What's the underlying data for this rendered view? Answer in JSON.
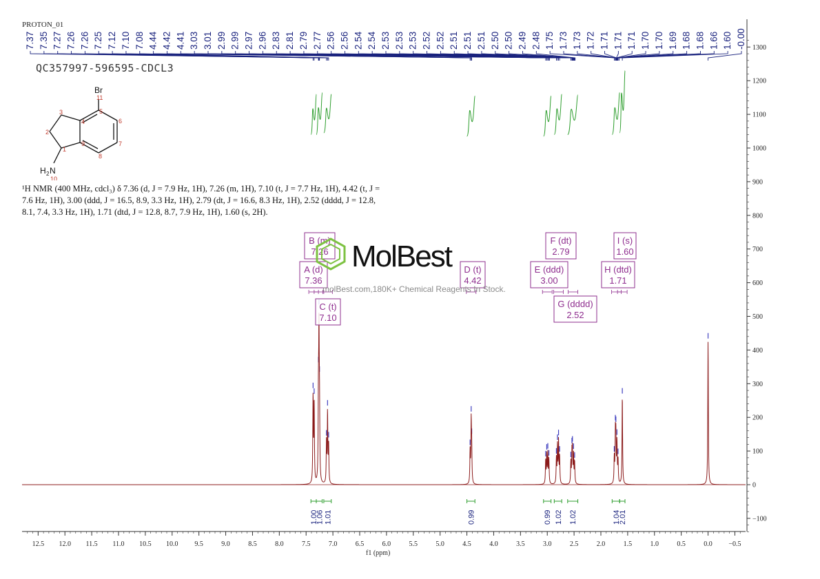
{
  "header": {
    "experiment": "PROTON_01",
    "sample_id": "QC357997-596595-CDCL3"
  },
  "structure": {
    "atoms": {
      "br": "Br",
      "nh2_h": "H",
      "nh2_sub": "2",
      "nh2_n": "N"
    },
    "numbers": [
      "1",
      "2",
      "3",
      "4",
      "5",
      "6",
      "7",
      "8",
      "9",
      "10",
      "11"
    ]
  },
  "nmr_summary": {
    "lines": [
      "¹H NMR (400 MHz, cdcl₃) δ 7.36 (d, J = 7.9 Hz, 1H), 7.26 (m, 1H), 7.10 (t, J = 7.7 Hz, 1H), 4.42 (t, J =",
      "7.6 Hz, 1H), 3.00 (ddd, J = 16.5, 8.9, 3.3 Hz, 1H), 2.79 (dt, J = 16.6, 8.3 Hz, 1H), 2.52 (dddd, J = 12.8,",
      "8.1, 7.4, 3.3 Hz, 1H), 1.71 (dtd, J = 12.8, 8.7, 7.9 Hz, 1H), 1.60 (s, 2H)."
    ]
  },
  "watermark": {
    "brand": "MolBest",
    "url": "molBest.com,180K+ Chemical Reagents In Stock."
  },
  "colors": {
    "spectrum": "#8b1a1a",
    "peak_label_line": "#1a237e",
    "integral": "#2e9e2e",
    "multiplet_box": "#8e2c8e",
    "peak_tick": "#3f3fbf",
    "logo_green": "#7dc242",
    "axis": "#333333"
  },
  "chart_data": {
    "type": "line",
    "title": "",
    "xlabel": "f1 (ppm)",
    "ylabel": "",
    "x_reversed": true,
    "xlim": [
      12.8,
      -0.7
    ],
    "ylim": [
      -150,
      1340
    ],
    "x_ticks": [
      12.5,
      12.0,
      11.5,
      11.0,
      10.5,
      10.0,
      9.5,
      9.0,
      8.5,
      8.0,
      7.5,
      7.0,
      6.5,
      6.0,
      5.5,
      5.0,
      4.5,
      4.0,
      3.5,
      3.0,
      2.5,
      2.0,
      1.5,
      1.0,
      0.5,
      0.0,
      -0.5
    ],
    "x_tick_labels": [
      "12.5",
      "12.0",
      "11.5",
      "11.0",
      "10.5",
      "10.0",
      "9.5",
      "9.0",
      "8.5",
      "8.0",
      "7.5",
      "7.0",
      "6.5",
      "6.0",
      "5.5",
      "5.0",
      "4.5",
      "4.0",
      "3.5",
      "3.0",
      "2.5",
      "2.0",
      "1.5",
      "1.0",
      "0.5",
      "0.0",
      "−0.5"
    ],
    "y_ticks": [
      -100,
      0,
      100,
      200,
      300,
      400,
      500,
      600,
      700,
      800,
      900,
      1000,
      1100,
      1200,
      1300
    ],
    "y_tick_labels": [
      "−100",
      "0",
      "100",
      "200",
      "300",
      "400",
      "500",
      "600",
      "700",
      "800",
      "900",
      "1000",
      "1100",
      "1200",
      "1300"
    ],
    "peaks": [
      {
        "ppm": 7.37,
        "height": 260
      },
      {
        "ppm": 7.35,
        "height": 240
      },
      {
        "ppm": 7.27,
        "height": 230
      },
      {
        "ppm": 7.26,
        "height": 415
      },
      {
        "ppm": 7.25,
        "height": 200
      },
      {
        "ppm": 7.12,
        "height": 120
      },
      {
        "ppm": 7.1,
        "height": 210
      },
      {
        "ppm": 7.08,
        "height": 115
      },
      {
        "ppm": 4.44,
        "height": 95
      },
      {
        "ppm": 4.42,
        "height": 180
      },
      {
        "ppm": 4.41,
        "height": 95
      },
      {
        "ppm": 3.03,
        "height": 70
      },
      {
        "ppm": 3.01,
        "height": 85
      },
      {
        "ppm": 2.99,
        "height": 88
      },
      {
        "ppm": 2.97,
        "height": 72
      },
      {
        "ppm": 2.83,
        "height": 75
      },
      {
        "ppm": 2.81,
        "height": 110
      },
      {
        "ppm": 2.79,
        "height": 125
      },
      {
        "ppm": 2.77,
        "height": 80
      },
      {
        "ppm": 2.56,
        "height": 65
      },
      {
        "ppm": 2.54,
        "height": 85
      },
      {
        "ppm": 2.53,
        "height": 90
      },
      {
        "ppm": 2.51,
        "height": 85
      },
      {
        "ppm": 2.49,
        "height": 65
      },
      {
        "ppm": 1.75,
        "height": 75
      },
      {
        "ppm": 1.73,
        "height": 140
      },
      {
        "ppm": 1.72,
        "height": 130
      },
      {
        "ppm": 1.7,
        "height": 120
      },
      {
        "ppm": 1.68,
        "height": 70
      },
      {
        "ppm": 1.6,
        "height": 265
      },
      {
        "ppm": 0.0,
        "height": 430
      }
    ],
    "peak_labels": [
      "7.37",
      "7.35",
      "7.27",
      "7.26",
      "7.26",
      "7.25",
      "7.12",
      "7.10",
      "7.08",
      "4.44",
      "4.42",
      "4.41",
      "3.03",
      "3.01",
      "2.99",
      "2.99",
      "2.97",
      "2.96",
      "2.83",
      "2.81",
      "2.79",
      "2.77",
      "2.56",
      "2.56",
      "2.54",
      "2.54",
      "2.53",
      "2.53",
      "2.53",
      "2.52",
      "2.52",
      "2.51",
      "2.51",
      "2.51",
      "2.50",
      "2.50",
      "2.49",
      "2.48",
      "1.75",
      "1.73",
      "1.73",
      "1.72",
      "1.71",
      "1.71",
      "1.71",
      "1.70",
      "1.70",
      "1.69",
      "1.68",
      "1.68",
      "1.66",
      "1.60",
      "-0.00"
    ],
    "peak_label_targets": [
      7.37,
      7.35,
      7.27,
      7.26,
      7.26,
      7.25,
      7.12,
      7.1,
      7.08,
      4.44,
      4.42,
      4.41,
      3.03,
      3.01,
      2.99,
      2.99,
      2.97,
      2.96,
      2.83,
      2.81,
      2.79,
      2.77,
      2.56,
      2.56,
      2.54,
      2.54,
      2.53,
      2.53,
      2.53,
      2.52,
      2.52,
      2.51,
      2.51,
      2.51,
      2.5,
      2.5,
      2.49,
      2.48,
      1.75,
      1.73,
      1.73,
      1.72,
      1.71,
      1.71,
      1.71,
      1.7,
      1.7,
      1.69,
      1.68,
      1.68,
      1.66,
      1.6,
      0.0
    ],
    "integrals": [
      {
        "from": 7.41,
        "to": 7.31,
        "value": "1.00",
        "curve_low": 1040,
        "curve_high": 1160
      },
      {
        "from": 7.31,
        "to": 7.2,
        "value": "1.06",
        "curve_low": 1040,
        "curve_high": 1165
      },
      {
        "from": 7.17,
        "to": 7.03,
        "value": "1.01",
        "curve_low": 1045,
        "curve_high": 1160
      },
      {
        "from": 4.5,
        "to": 4.35,
        "value": "0.99",
        "curve_low": 1035,
        "curve_high": 1155
      },
      {
        "from": 3.07,
        "to": 2.93,
        "value": "0.99",
        "curve_low": 1035,
        "curve_high": 1155
      },
      {
        "from": 2.87,
        "to": 2.73,
        "value": "1.02",
        "curve_low": 1040,
        "curve_high": 1160
      },
      {
        "from": 2.62,
        "to": 2.43,
        "value": "1.02",
        "curve_low": 1040,
        "curve_high": 1158
      },
      {
        "from": 1.79,
        "to": 1.65,
        "value": "1.04",
        "curve_low": 1040,
        "curve_high": 1165
      },
      {
        "from": 1.65,
        "to": 1.55,
        "value": "2.01",
        "curve_low": 1045,
        "curve_high": 1230
      }
    ],
    "multiplets": [
      {
        "name": "B (m)",
        "shift": "7.26",
        "ppm": 7.26
      },
      {
        "name": "A (d)",
        "shift": "7.36",
        "ppm": 7.36
      },
      {
        "name": "C (t)",
        "shift": "7.10",
        "ppm": 7.1
      },
      {
        "name": "D (t)",
        "shift": "4.42",
        "ppm": 4.42
      },
      {
        "name": "E (ddd)",
        "shift": "3.00",
        "ppm": 3.0
      },
      {
        "name": "F (dt)",
        "shift": "2.79",
        "ppm": 2.79
      },
      {
        "name": "G (dddd)",
        "shift": "2.52",
        "ppm": 2.52
      },
      {
        "name": "H (dtd)",
        "shift": "1.71",
        "ppm": 1.71
      },
      {
        "name": "I (s)",
        "shift": "1.60",
        "ppm": 1.6
      }
    ]
  }
}
